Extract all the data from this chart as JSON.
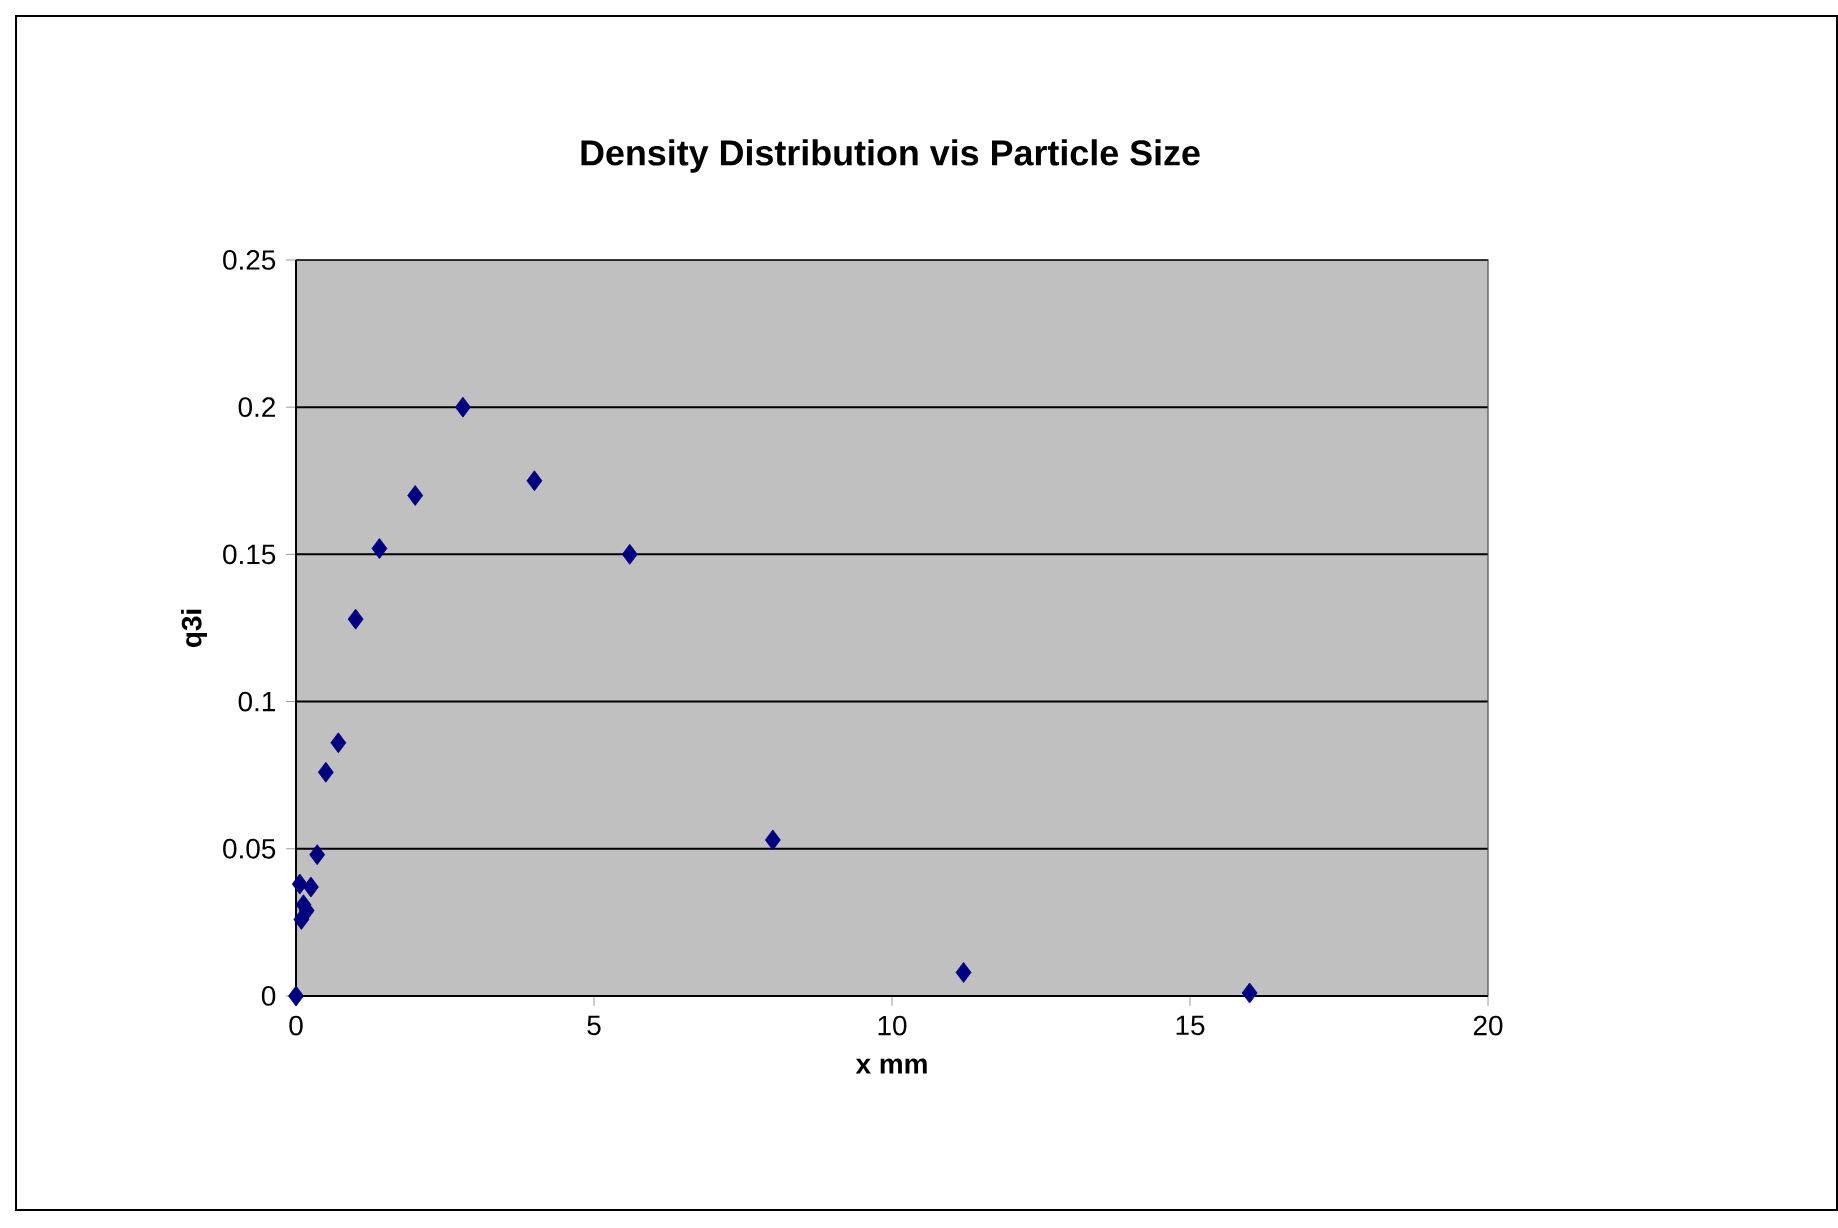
{
  "chart_data": {
    "type": "scatter",
    "title": "Density Distribution  vis  Particle Size",
    "xlabel": "x mm",
    "ylabel": "q3i",
    "x": [
      0,
      0.063,
      0.09,
      0.125,
      0.18,
      0.25,
      0.355,
      0.5,
      0.71,
      1,
      1.4,
      2,
      2.8,
      4,
      5.6,
      8,
      11.2,
      16
    ],
    "series": [
      {
        "color": "#000080",
        "values": [
          0,
          0.038,
          0.026,
          0.031,
          0.029,
          0.037,
          0.048,
          0.076,
          0.086,
          0.128,
          0.152,
          0.17,
          0.2,
          0.175,
          0.15,
          0.053,
          0.008,
          0.001
        ]
      }
    ],
    "xlim": [
      0,
      20
    ],
    "ylim": [
      0,
      0.25
    ],
    "xticks": [
      0,
      5,
      10,
      15,
      20
    ],
    "yticks": [
      0,
      0.05,
      0.1,
      0.15,
      0.2,
      0.25
    ],
    "grid": "y",
    "marker": "diamond"
  }
}
